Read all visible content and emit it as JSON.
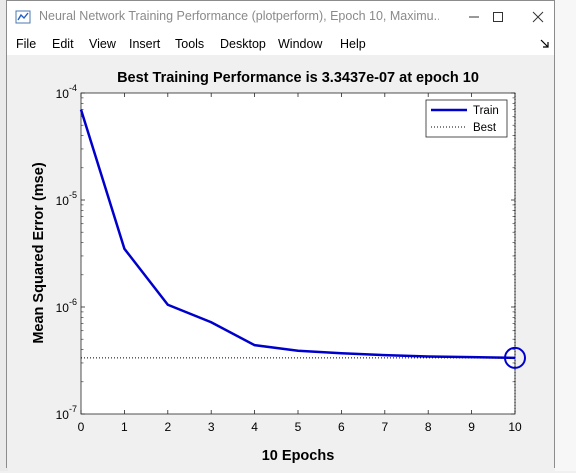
{
  "window": {
    "title": "Neural Network Training Performance (plotperform), Epoch 10, Maximu...",
    "controls": [
      "minimize",
      "maximize",
      "close"
    ]
  },
  "menu": {
    "file": "File",
    "edit": "Edit",
    "view": "View",
    "insert": "Insert",
    "tools": "Tools",
    "desktop": "Desktop",
    "window": "Window",
    "help": "Help"
  },
  "chart_data": {
    "type": "line",
    "title": "Best Training Performance is 3.3437e-07 at epoch 10",
    "xlabel": "10 Epochs",
    "ylabel": "Mean Squared Error  (mse)",
    "yscale": "log",
    "xlim": [
      0,
      10
    ],
    "ylim": [
      1e-07,
      0.0001
    ],
    "x_ticks": [
      "0",
      "1",
      "2",
      "3",
      "4",
      "5",
      "6",
      "7",
      "8",
      "9",
      "10"
    ],
    "y_ticks": [
      {
        "base": "10",
        "exp": "-4"
      },
      {
        "base": "10",
        "exp": "-5"
      },
      {
        "base": "10",
        "exp": "-6"
      },
      {
        "base": "10",
        "exp": "-7"
      }
    ],
    "x": [
      0,
      1,
      2,
      3,
      4,
      5,
      6,
      7,
      8,
      9,
      10
    ],
    "series": [
      {
        "name": "Train",
        "color": "#0000cc",
        "style": "solid",
        "values": [
          7e-05,
          3.5e-06,
          1.05e-06,
          7.2e-07,
          4.4e-07,
          3.9e-07,
          3.7e-07,
          3.55e-07,
          3.45e-07,
          3.4e-07,
          3.3437e-07
        ]
      },
      {
        "name": "Best",
        "color": "#000000",
        "style": "dotted",
        "values": [
          3.3437e-07,
          3.3437e-07,
          3.3437e-07,
          3.3437e-07,
          3.3437e-07,
          3.3437e-07,
          3.3437e-07,
          3.3437e-07,
          3.3437e-07,
          3.3437e-07,
          3.3437e-07
        ]
      }
    ],
    "best_marker": {
      "x": 10,
      "y": 3.3437e-07,
      "color": "#0000cc"
    },
    "legend_position": "top-right",
    "grid": false
  }
}
